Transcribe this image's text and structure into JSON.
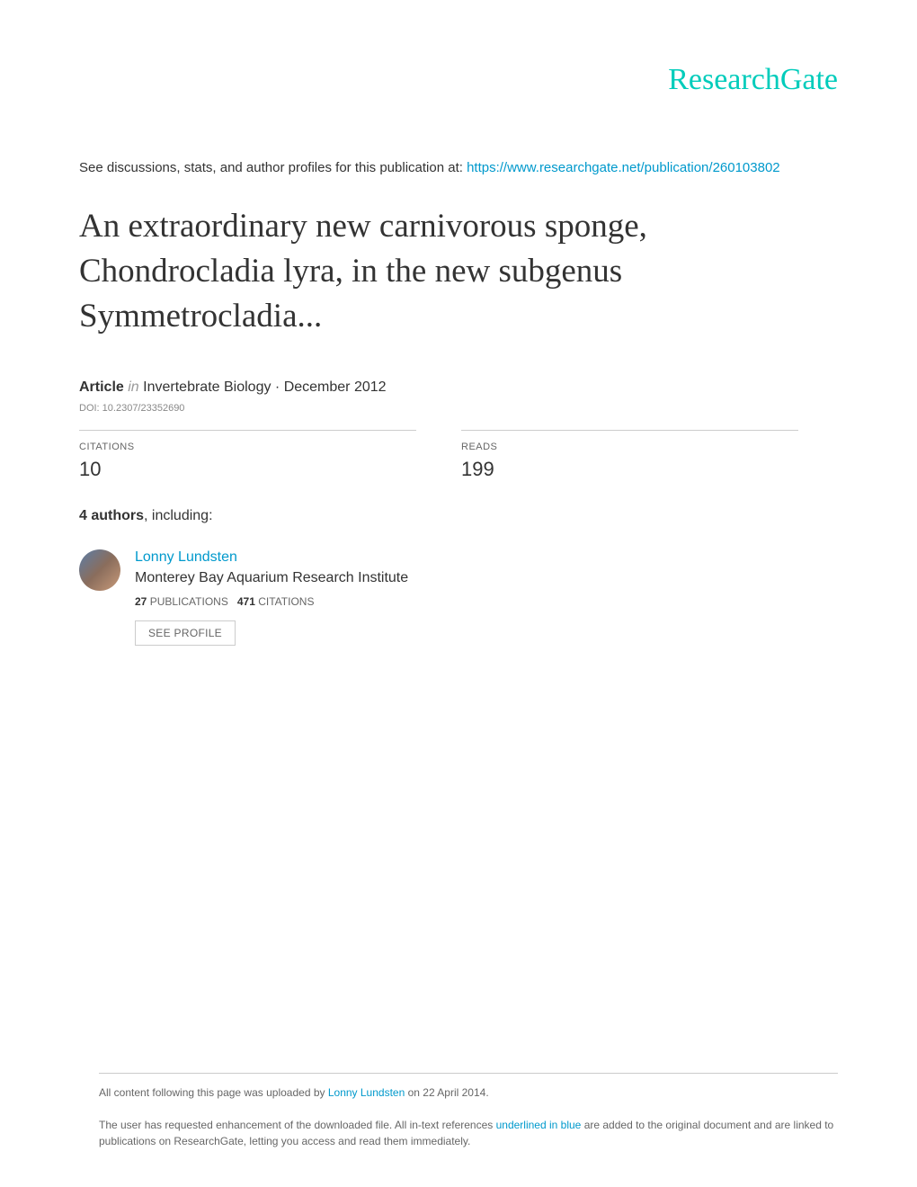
{
  "logo": "ResearchGate",
  "intro": {
    "prefix": "See discussions, stats, and author profiles for this publication at: ",
    "url": "https://www.researchgate.net/publication/260103802"
  },
  "title": "An extraordinary new carnivorous sponge, Chondrocladia lyra, in the new subgenus Symmetrocladia...",
  "article": {
    "type_label": "Article",
    "in_word": "in",
    "journal": "Invertebrate Biology",
    "date": "December 2012",
    "doi_label": "DOI: 10.2307/23352690"
  },
  "stats": {
    "citations_label": "CITATIONS",
    "citations_value": "10",
    "reads_label": "READS",
    "reads_value": "199"
  },
  "authors_line": {
    "count_prefix": "4 authors",
    "suffix": ", including:"
  },
  "author": {
    "name": "Lonny Lundsten",
    "affiliation": "Monterey Bay Aquarium Research Institute",
    "pubs_count": "27",
    "pubs_label": "PUBLICATIONS",
    "cites_count": "471",
    "cites_label": "CITATIONS",
    "see_profile": "SEE PROFILE"
  },
  "footer": {
    "upload_prefix": "All content following this page was uploaded by ",
    "uploader": "Lonny Lundsten",
    "upload_suffix": " on 22 April 2014.",
    "note_prefix": "The user has requested enhancement of the downloaded file. All in-text references ",
    "note_link": "underlined in blue",
    "note_suffix": " are added to the original document and are linked to publications on ResearchGate, letting you access and read them immediately."
  },
  "colors": {
    "brand": "#00ccbb",
    "link": "#0099cc",
    "text": "#333333",
    "muted": "#666666",
    "border": "#cccccc"
  }
}
